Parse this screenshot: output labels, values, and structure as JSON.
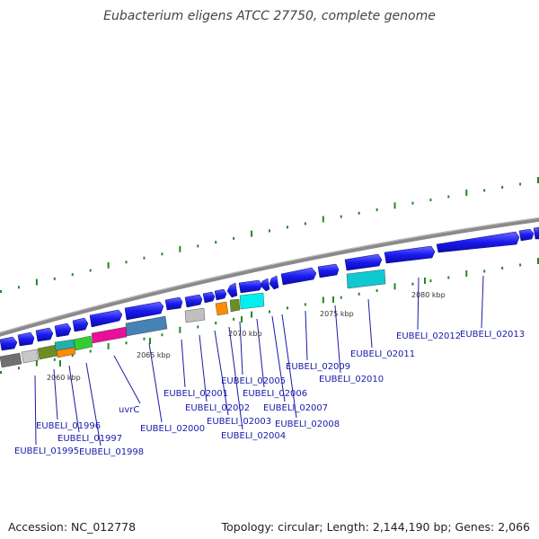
{
  "title": "Eubacterium eligens ATCC 27750, complete genome",
  "footer": {
    "accession": "Accession: NC_012778",
    "topology": "Topology: circular; Length: 2,144,190 bp; Genes: 2,066"
  },
  "scale_labels": [
    "2060 kbp",
    "2065 kbp",
    "2070 kbp",
    "2075 kbp",
    "2080 kbp"
  ],
  "gene_labels": [
    "EUBELI_01995",
    "EUBELI_01996",
    "EUBELI_01997",
    "EUBELI_01998",
    "uvrC",
    "EUBELI_02000",
    "EUBELI_02001",
    "EUBELI_02002",
    "EUBELI_02003",
    "EUBELI_02004",
    "EUBELI_02005",
    "EUBELI_02006",
    "EUBELI_02007",
    "EUBELI_02008",
    "EUBELI_02009",
    "EUBELI_02010",
    "EUBELI_02011",
    "EUBELI_02012",
    "EUBELI_02013"
  ],
  "colors": {
    "gene_blue": "#1a1aee",
    "backbone": "#888888",
    "ticks": "#228822",
    "label": "#1a1aaa"
  }
}
